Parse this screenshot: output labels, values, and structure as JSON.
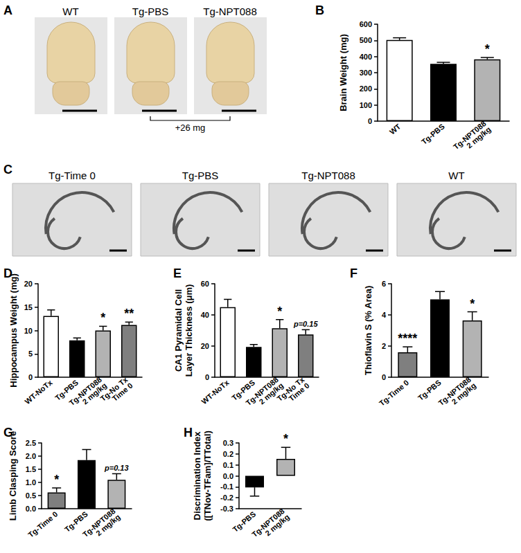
{
  "chart_data": [
    {
      "title": "B",
      "type": "bar",
      "ylabel": "Brain Weight (mg)",
      "categories": [
        "WT",
        "Tg-PBS",
        "Tg-NPT088\n2 mg/kg"
      ],
      "values": [
        502,
        355,
        383
      ],
      "errors": [
        14,
        9,
        11
      ],
      "colors": [
        "#ffffff",
        "#000000",
        "#b3b3b3"
      ],
      "annotations": [
        null,
        null,
        "*"
      ],
      "ylim": [
        0,
        600
      ],
      "yticks": [
        0,
        100,
        200,
        300,
        400,
        500,
        600
      ],
      "grid": false
    },
    {
      "title": "D",
      "type": "bar",
      "ylabel": "Hippocampus Weight (mg)",
      "categories": [
        "WT-NoTx",
        "Tg-PBS",
        "Tg-NPT088\n2 mg/kg",
        "Tg-No Tx\nTime 0"
      ],
      "values": [
        13.1,
        7.9,
        10.0,
        11.2
      ],
      "errors": [
        1.3,
        0.5,
        0.9,
        0.6
      ],
      "colors": [
        "#ffffff",
        "#000000",
        "#b3b3b3",
        "#7f7f7f"
      ],
      "annotations": [
        null,
        null,
        "*",
        "**"
      ],
      "ylim": [
        0,
        20
      ],
      "yticks": [
        0,
        5,
        10,
        15,
        20
      ],
      "grid": false
    },
    {
      "title": "E",
      "type": "bar",
      "ylabel": "CA1 Pyramidal Cell\nLayer Thickness (μm)",
      "categories": [
        "WT-NoTx",
        "Tg-PBS",
        "Tg-NPT088\n2 mg/kg",
        "Tg-No Tx\nTime 0"
      ],
      "values": [
        45,
        19.5,
        31.5,
        27.5
      ],
      "errors": [
        5,
        1.5,
        5.5,
        3
      ],
      "colors": [
        "#ffffff",
        "#000000",
        "#b3b3b3",
        "#7f7f7f"
      ],
      "annotations": [
        null,
        null,
        "*",
        "p=0.15"
      ],
      "ylim": [
        0,
        60
      ],
      "yticks": [
        0,
        20,
        40,
        60
      ],
      "grid": false
    },
    {
      "title": "F",
      "type": "bar",
      "ylabel": "Thioflavin S (% Area)",
      "categories": [
        "Tg-Time 0",
        "Tg-PBS",
        "Tg-NPT088\n2 mg/kg"
      ],
      "values": [
        1.6,
        5.0,
        3.65
      ],
      "errors": [
        0.35,
        0.5,
        0.55
      ],
      "colors": [
        "#7f7f7f",
        "#000000",
        "#b3b3b3"
      ],
      "annotations": [
        "****",
        null,
        "*"
      ],
      "ylim": [
        0,
        6
      ],
      "yticks": [
        0,
        2,
        4,
        6
      ],
      "grid": false
    },
    {
      "title": "G",
      "type": "bar",
      "ylabel": "Limb Clasping Score",
      "categories": [
        "Tg-Time 0",
        "Tg-PBS",
        "Tg-NPT088\n2 mg/kg"
      ],
      "values": [
        0.62,
        1.85,
        1.1
      ],
      "errors": [
        0.17,
        0.4,
        0.23
      ],
      "colors": [
        "#7f7f7f",
        "#000000",
        "#b3b3b3"
      ],
      "annotations": [
        "*",
        null,
        "p=0.13"
      ],
      "ylim": [
        0,
        2.5
      ],
      "yticks": [
        {
          "value": 0,
          "label": "0.0"
        },
        0.5,
        {
          "value": 1,
          "label": "1.0"
        },
        1.5,
        {
          "value": 2,
          "label": "2.0"
        },
        2.5
      ],
      "grid": false
    },
    {
      "title": "H",
      "type": "bar",
      "ylabel": "Discrimination Index\n([TNov-TFam]/TTotal)",
      "categories": [
        "Tg-PBS",
        "Tg-NPT088\n2 mg/kg"
      ],
      "values": [
        -0.105,
        0.155
      ],
      "errors": [
        0.08,
        0.105
      ],
      "colors": [
        "#000000",
        "#b3b3b3"
      ],
      "annotations": [
        null,
        "*"
      ],
      "ylim": [
        -0.3,
        0.3
      ],
      "yticks": [
        -0.3,
        -0.2,
        -0.1,
        {
          "value": 0,
          "label": "0.0"
        },
        0.1,
        0.2,
        0.3
      ],
      "grid": false
    }
  ],
  "images": [
    {
      "title": "A",
      "labels": [
        "WT",
        "Tg-PBS",
        "Tg-NPT088"
      ],
      "annotation": "+26 mg"
    },
    {
      "title": "C",
      "labels": [
        "Tg-Time 0",
        "Tg-PBS",
        "Tg-NPT088",
        "WT"
      ]
    }
  ]
}
